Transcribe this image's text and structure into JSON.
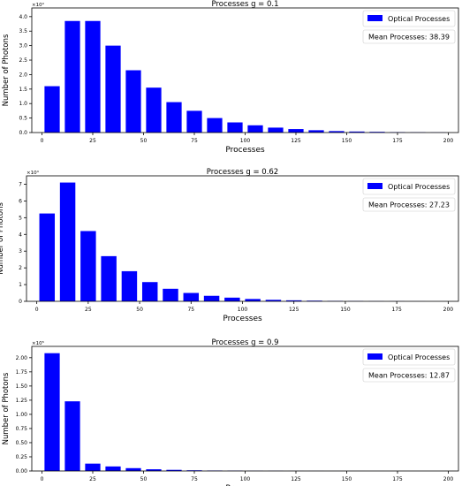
{
  "chart_data": [
    {
      "type": "bar",
      "title": "Processes g = 0.1",
      "xlabel": "Processes",
      "ylabel": "Number of Photons",
      "multiplier": "×10⁴",
      "bar_color": "#0000ff",
      "legend": {
        "label": "Optical Processes",
        "placement": "top-right"
      },
      "annotation": "Mean Processes: 38.39",
      "x": [
        5,
        15,
        25,
        35,
        45,
        55,
        65,
        75,
        85,
        95,
        105,
        115,
        125,
        135,
        145,
        155,
        165,
        175,
        185,
        195
      ],
      "values": [
        16000,
        38500,
        38500,
        30000,
        21500,
        15500,
        10500,
        7500,
        5000,
        3500,
        2500,
        1700,
        1200,
        800,
        500,
        350,
        250,
        150,
        100,
        60
      ],
      "xlim": [
        -5,
        205
      ],
      "ylim": [
        0,
        43000
      ],
      "xticks": [
        0,
        25,
        50,
        75,
        100,
        125,
        150,
        175,
        200
      ],
      "yticks": [
        0,
        5000,
        10000,
        15000,
        20000,
        25000,
        30000,
        35000,
        40000
      ],
      "ytick_labels": [
        "0.0",
        "0.5",
        "1.0",
        "1.5",
        "2.0",
        "2.5",
        "3.0",
        "3.5",
        "4.0"
      ]
    },
    {
      "type": "bar",
      "title": "Processes g = 0.62",
      "xlabel": "Processes",
      "ylabel": "Number of Photons",
      "multiplier": "×10⁴",
      "bar_color": "#0000ff",
      "legend": {
        "label": "Optical Processes",
        "placement": "top-right"
      },
      "annotation": "Mean Processes: 27.23",
      "x": [
        5,
        15,
        25,
        35,
        45,
        55,
        65,
        75,
        85,
        95,
        105,
        115,
        125,
        135,
        145,
        155,
        165,
        175,
        185,
        195
      ],
      "values": [
        52500,
        71000,
        42000,
        27000,
        18000,
        11500,
        7500,
        5000,
        3300,
        2200,
        1400,
        900,
        600,
        400,
        250,
        150,
        100,
        70,
        40,
        20
      ],
      "xlim": [
        -5,
        205
      ],
      "ylim": [
        0,
        75000
      ],
      "xticks": [
        0,
        25,
        50,
        75,
        100,
        125,
        150,
        175,
        200
      ],
      "yticks": [
        0,
        10000,
        20000,
        30000,
        40000,
        50000,
        60000,
        70000
      ],
      "ytick_labels": [
        "0",
        "1",
        "2",
        "3",
        "4",
        "5",
        "6",
        "7"
      ]
    },
    {
      "type": "bar",
      "title": "Processes g = 0.9",
      "xlabel": "Processes",
      "ylabel": "Number of Photons",
      "multiplier": "×10⁵",
      "bar_color": "#0000ff",
      "legend": {
        "label": "Optical Processes",
        "placement": "top-right"
      },
      "annotation": "Mean Processes: 12.87",
      "x": [
        5,
        15,
        25,
        35,
        45,
        55,
        65,
        75,
        85,
        95,
        105,
        115,
        125,
        135,
        145,
        155,
        165,
        175,
        185,
        195
      ],
      "values": [
        208000,
        123000,
        13000,
        8000,
        5000,
        3000,
        2000,
        1200,
        800,
        500,
        300,
        200,
        120,
        80,
        50,
        30,
        20,
        10,
        5,
        3
      ],
      "xlim": [
        -5,
        205
      ],
      "ylim": [
        0,
        220000
      ],
      "xticks": [
        0,
        25,
        50,
        75,
        100,
        125,
        150,
        175,
        200
      ],
      "yticks": [
        0,
        25000,
        50000,
        75000,
        100000,
        125000,
        150000,
        175000,
        200000
      ],
      "ytick_labels": [
        "0.00",
        "0.25",
        "0.50",
        "0.75",
        "1.00",
        "1.25",
        "1.50",
        "1.75",
        "2.00"
      ]
    }
  ]
}
